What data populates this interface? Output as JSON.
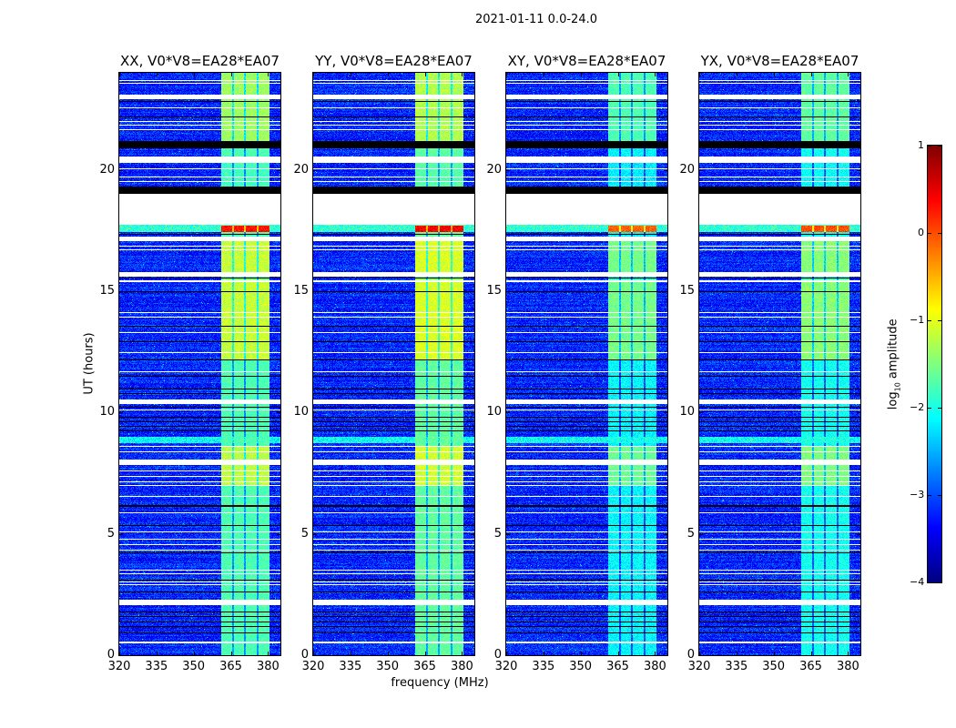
{
  "chart_data": {
    "type": "heatmap",
    "title": "2021-01-11 0.0-24.0",
    "xlabel": "frequency (MHz)",
    "ylabel": "UT (hours)",
    "xlim": [
      320,
      385
    ],
    "ylim": [
      0,
      24
    ],
    "xticks": [
      "320",
      "335",
      "350",
      "365",
      "380"
    ],
    "xtick_values": [
      320,
      335,
      350,
      365,
      380
    ],
    "yticks": [
      "0",
      "5",
      "10",
      "15",
      "20"
    ],
    "ytick_values": [
      0,
      5,
      10,
      15,
      20
    ],
    "panels": [
      {
        "title": "XX, V0*V8=EA28*EA07",
        "band_offset": 0.0,
        "seed": 11
      },
      {
        "title": "YY, V0*V8=EA28*EA07",
        "band_offset": 0.1,
        "seed": 23
      },
      {
        "title": "XY, V0*V8=EA28*EA07",
        "band_offset": -0.4,
        "seed": 37
      },
      {
        "title": "YX, V0*V8=EA28*EA07",
        "band_offset": -0.3,
        "seed": 51
      }
    ],
    "colorbar": {
      "label_main": "log",
      "label_sub": "10",
      "label_rest": " amplitude",
      "colormap": "jet",
      "range": [
        -4,
        1
      ],
      "ticks": [
        "1",
        "0",
        "−1",
        "−2",
        "−3",
        "−4"
      ],
      "tick_values": [
        1,
        0,
        -1,
        -2,
        -3,
        -4
      ]
    },
    "background_level": -3.2,
    "bright_subbands_mhz": [
      [
        361.2,
        365.5
      ],
      [
        366.2,
        370.3
      ],
      [
        371.0,
        375.6
      ],
      [
        376.3,
        380.6
      ]
    ],
    "band_time_levels": [
      {
        "ut": [
          0,
          24
        ],
        "level": -1.75
      },
      {
        "ut": [
          21.2,
          24
        ],
        "level": -1.35
      },
      {
        "ut": [
          19.0,
          20.6
        ],
        "level": -1.8
      },
      {
        "ut": [
          15.8,
          17.1
        ],
        "level": -1.15
      },
      {
        "ut": [
          12.2,
          15.5
        ],
        "level": -1.15
      },
      {
        "ut": [
          7.0,
          8.6
        ],
        "level": -1.2
      },
      {
        "ut": [
          17.45,
          17.7
        ],
        "level": 0.3
      }
    ],
    "flagged_white_ut": [
      [
        22.9,
        23.1
      ],
      [
        20.3,
        20.55
      ],
      [
        17.75,
        19.0
      ],
      [
        17.05,
        17.25
      ],
      [
        15.6,
        15.8
      ],
      [
        10.35,
        10.55
      ],
      [
        7.85,
        8.05
      ],
      [
        2.05,
        2.3
      ],
      [
        0.48,
        0.56
      ]
    ],
    "flagged_black_ut": [
      [
        20.9,
        21.2
      ],
      [
        19.0,
        19.3
      ]
    ],
    "thin_white_ut": [
      23.71,
      23.59,
      22.57,
      22.0,
      21.87,
      21.67,
      20.06,
      19.73,
      19.55,
      16.87,
      16.72,
      15.45,
      15.4,
      14.13,
      13.95,
      13.3,
      12.5,
      11.7,
      10.12,
      8.62,
      8.4,
      7.62,
      7.39,
      7.16,
      7.01,
      6.56,
      5.89,
      5.1,
      4.8,
      4.57,
      4.35,
      3.52,
      3.37,
      3.03,
      2.93
    ],
    "thin_black_ut": [
      22.84,
      22.2,
      18.67,
      17.36,
      15.56,
      15.0,
      13.57,
      12.94,
      12.19,
      11.51,
      10.99,
      10.8,
      10.24,
      9.82,
      9.64,
      9.45,
      9.26,
      6.19,
      6.14,
      5.36,
      4.24,
      3.11,
      2.62,
      1.8,
      1.61,
      1.39,
      1.2,
      0.94
    ],
    "elevated_rows_ut": [
      {
        "ut": [
          8.75,
          9.0
        ],
        "level": -2.1
      },
      {
        "ut": [
          17.45,
          17.75
        ],
        "level": -1.9
      }
    ]
  }
}
